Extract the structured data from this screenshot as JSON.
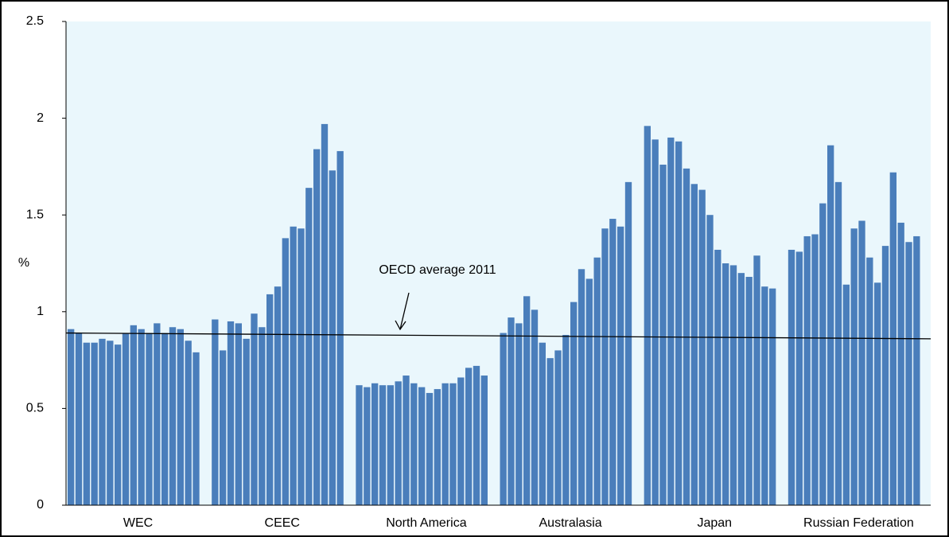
{
  "chart_data": {
    "type": "bar",
    "y_label": "%",
    "color": "#4a7ebb",
    "ylim": [
      0,
      2.5
    ],
    "yticks": [
      0,
      0.5,
      1,
      1.5,
      2,
      2.5
    ],
    "groups": [
      {
        "name": "WEC",
        "values": [
          0.91,
          0.89,
          0.84,
          0.84,
          0.86,
          0.85,
          0.83,
          0.89,
          0.93,
          0.91,
          0.89,
          0.94,
          0.89,
          0.92,
          0.91,
          0.85,
          0.79
        ]
      },
      {
        "name": "CEEC",
        "values": [
          0.96,
          0.8,
          0.95,
          0.94,
          0.86,
          0.99,
          0.92,
          1.09,
          1.13,
          1.38,
          1.44,
          1.43,
          1.64,
          1.84,
          1.97,
          1.73,
          1.83
        ]
      },
      {
        "name": "North America",
        "values": [
          0.62,
          0.61,
          0.63,
          0.62,
          0.62,
          0.64,
          0.67,
          0.63,
          0.61,
          0.58,
          0.6,
          0.63,
          0.63,
          0.66,
          0.71,
          0.72,
          0.67
        ]
      },
      {
        "name": "Australasia",
        "values": [
          0.89,
          0.97,
          0.94,
          1.08,
          1.01,
          0.84,
          0.76,
          0.8,
          0.88,
          1.05,
          1.22,
          1.17,
          1.28,
          1.43,
          1.48,
          1.44,
          1.67
        ]
      },
      {
        "name": "Japan",
        "values": [
          1.96,
          1.89,
          1.76,
          1.9,
          1.88,
          1.74,
          1.66,
          1.63,
          1.5,
          1.32,
          1.25,
          1.24,
          1.2,
          1.18,
          1.29,
          1.13,
          1.12
        ]
      },
      {
        "name": "Russian Federation",
        "values": [
          1.32,
          1.31,
          1.39,
          1.4,
          1.56,
          1.86,
          1.67,
          1.14,
          1.43,
          1.47,
          1.28,
          1.15,
          1.34,
          1.72,
          1.46,
          1.36,
          1.39
        ]
      }
    ],
    "reference_line": {
      "label": "OECD average 2011",
      "start": 0.89,
      "end": 0.86
    }
  }
}
